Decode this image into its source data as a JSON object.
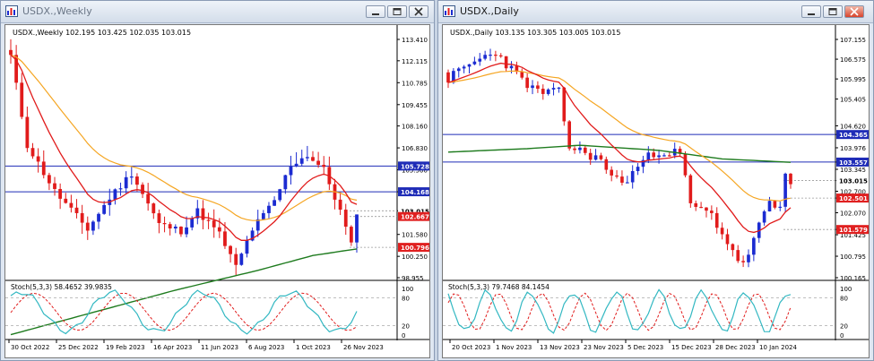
{
  "windows": [
    {
      "title": "USDX.,Weekly",
      "ohlc": "USDX.,Weekly  102.195 103.425 102.035 103.015",
      "stoch_label": "Stoch(5,3,3) 58.4652 39.9835",
      "price_axis": [
        "113.410",
        "112.115",
        "110.785",
        "109.455",
        "108.160",
        "106.830",
        "105.500",
        "104.168",
        "103.015",
        "101.580",
        "100.250",
        "98.955"
      ],
      "hlines": [
        {
          "label": "105.728",
          "value": 105.728,
          "bg": "#1f2cb7"
        },
        {
          "label": "104.168",
          "value": 104.168,
          "bg": "#1f2cb7"
        },
        {
          "label": "103.015",
          "value": 103.015,
          "bg": "#ffffff"
        },
        {
          "label": "102.667",
          "value": 102.667,
          "bg": "#e02020"
        },
        {
          "label": "100.796",
          "value": 100.796,
          "bg": "#e02020"
        }
      ],
      "stoch_axis": [
        "100",
        "80",
        "20",
        "0"
      ],
      "date_axis": [
        "30 Oct 2022",
        "25 Dec 2022",
        "19 Feb 2023",
        "16 Apr 2023",
        "11 Jun 2023",
        "6 Aug 2023",
        "1 Oct 2023",
        "26 Nov 2023"
      ]
    },
    {
      "title": "USDX.,Daily",
      "ohlc": "USDX.,Daily  103.135 103.305 103.005 103.015",
      "stoch_label": "Stoch(5,3,3) 79.7468 84.1454",
      "price_axis": [
        "107.155",
        "106.575",
        "105.995",
        "105.405",
        "104.620",
        "104.365",
        "103.976",
        "103.557",
        "103.345",
        "103.015",
        "102.700",
        "102.501",
        "102.070",
        "101.579",
        "101.425",
        "100.795",
        "100.165"
      ],
      "hlines": [
        {
          "label": "104.365",
          "value": 104.365,
          "bg": "#1f2cb7"
        },
        {
          "label": "103.557",
          "value": 103.557,
          "bg": "#1f2cb7"
        },
        {
          "label": "103.015",
          "value": 103.015,
          "bg": "#ffffff"
        },
        {
          "label": "102.501",
          "value": 102.501,
          "bg": "#e02020"
        },
        {
          "label": "101.579",
          "value": 101.579,
          "bg": "#e02020"
        }
      ],
      "stoch_axis": [
        "100",
        "80",
        "20",
        "0"
      ],
      "date_axis": [
        "20 Oct 2023",
        "1 Nov 2023",
        "13 Nov 2023",
        "23 Nov 2023",
        "5 Dec 2023",
        "15 Dec 2023",
        "28 Dec 2023",
        "10 Jan 2024"
      ]
    }
  ],
  "colors": {
    "bull": "#1b2bd1",
    "bear": "#e11b1b",
    "ma_fast": "#e11b1b",
    "ma_mid": "#f5a623",
    "ma_slow": "#1e7b1e",
    "stoch_main": "#33b8c2",
    "stoch_signal": "#e11b1b",
    "sup_line": "#e11b1b",
    "res_line": "#1f2cb7"
  },
  "icons": {
    "minimize": "minimize-icon",
    "restore": "restore-icon",
    "close": "close-icon",
    "app": "chart-window-icon"
  }
}
